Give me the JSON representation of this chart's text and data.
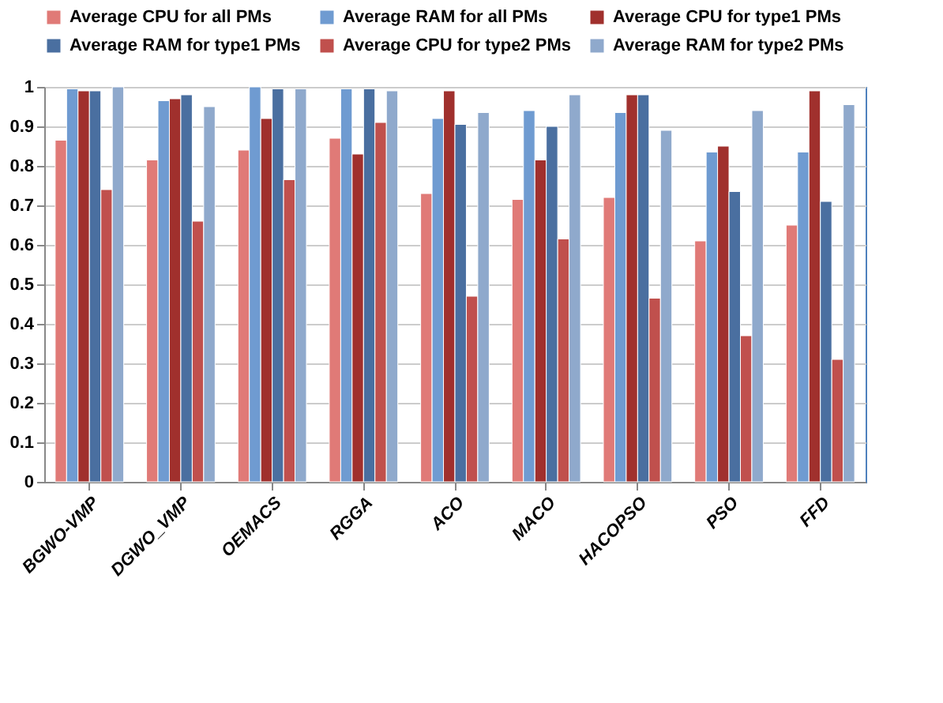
{
  "chart_data": {
    "type": "bar",
    "categories": [
      "BGWO-VMP",
      "DGWO_VMP",
      "OEMACS",
      "RGGA",
      "ACO",
      "MACO",
      "HACOPSO",
      "PSO",
      "FFD"
    ],
    "series": [
      {
        "name": "Average CPU for all PMs",
        "color": "#e07a77",
        "values": [
          0.865,
          0.815,
          0.84,
          0.87,
          0.73,
          0.715,
          0.72,
          0.61,
          0.65
        ]
      },
      {
        "name": "Average RAM for all PMs",
        "color": "#6f9bd1",
        "values": [
          0.995,
          0.965,
          1.0,
          0.995,
          0.92,
          0.94,
          0.935,
          0.835,
          0.835
        ]
      },
      {
        "name": "Average CPU for type1 PMs",
        "color": "#a0302d",
        "values": [
          0.99,
          0.97,
          0.92,
          0.83,
          0.99,
          0.815,
          0.98,
          0.85,
          0.99
        ]
      },
      {
        "name": "Average RAM for type1 PMs",
        "color": "#4a6fa0",
        "values": [
          0.99,
          0.98,
          0.995,
          0.995,
          0.905,
          0.9,
          0.98,
          0.735,
          0.71
        ]
      },
      {
        "name": "Average CPU for type2 PMs",
        "color": "#c0504d",
        "values": [
          0.74,
          0.66,
          0.765,
          0.91,
          0.47,
          0.615,
          0.465,
          0.37,
          0.31
        ]
      },
      {
        "name": "Average RAM for type2 PMs",
        "color": "#8fa9cc",
        "values": [
          1.0,
          0.95,
          0.995,
          0.99,
          0.935,
          0.98,
          0.89,
          0.94,
          0.955
        ]
      }
    ],
    "ylim": [
      0,
      1
    ],
    "yticks": [
      0,
      0.1,
      0.2,
      0.3,
      0.4,
      0.5,
      0.6,
      0.7,
      0.8,
      0.9,
      1
    ],
    "grid": "y",
    "legend": "top"
  }
}
